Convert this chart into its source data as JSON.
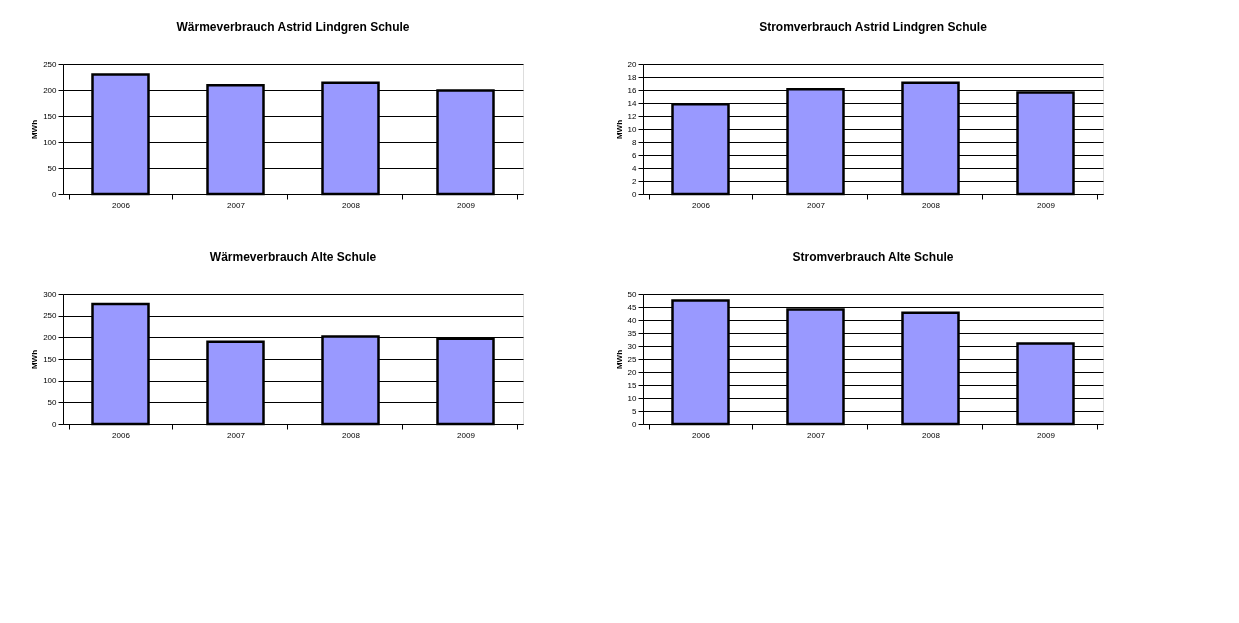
{
  "chart_data": [
    {
      "type": "bar",
      "title": "Wärmeverbrauch  Astrid Lindgren Schule",
      "ylabel": "MWh",
      "categories": [
        "2006",
        "2007",
        "2008",
        "2009"
      ],
      "values": [
        230,
        209,
        214,
        199
      ],
      "color": "#9999ff",
      "ylim": [
        0,
        250
      ],
      "yticks": [
        0,
        50,
        100,
        150,
        200,
        250
      ],
      "grid": "y",
      "legend": false
    },
    {
      "type": "bar",
      "title": "Stromverbrauch Astrid Lindgren Schule",
      "ylabel": "MWh",
      "categories": [
        "2006",
        "2007",
        "2008",
        "2009"
      ],
      "values": [
        13.8,
        16.1,
        17.1,
        15.6
      ],
      "color": "#9999ff",
      "ylim": [
        0,
        20
      ],
      "yticks": [
        0,
        2,
        4,
        6,
        8,
        10,
        12,
        14,
        16,
        18,
        20
      ],
      "grid": "y",
      "legend": false
    },
    {
      "type": "bar",
      "title": "Wärmeverbrauch Alte Schule",
      "ylabel": "MWh",
      "categories": [
        "2006",
        "2007",
        "2008",
        "2009"
      ],
      "values": [
        277,
        190,
        202,
        197
      ],
      "color": "#9999ff",
      "ylim": [
        0,
        300
      ],
      "yticks": [
        0,
        50,
        100,
        150,
        200,
        250,
        300
      ],
      "grid": "y",
      "legend": false
    },
    {
      "type": "bar",
      "title": "Stromverbrauch Alte Schule",
      "ylabel": "MWh",
      "categories": [
        "2006",
        "2007",
        "2008",
        "2009"
      ],
      "values": [
        47.5,
        44,
        42.8,
        31
      ],
      "color": "#9999ff",
      "ylim": [
        0,
        50
      ],
      "yticks": [
        0,
        5,
        10,
        15,
        20,
        25,
        30,
        35,
        40,
        45,
        50
      ],
      "grid": "y",
      "legend": false
    }
  ]
}
